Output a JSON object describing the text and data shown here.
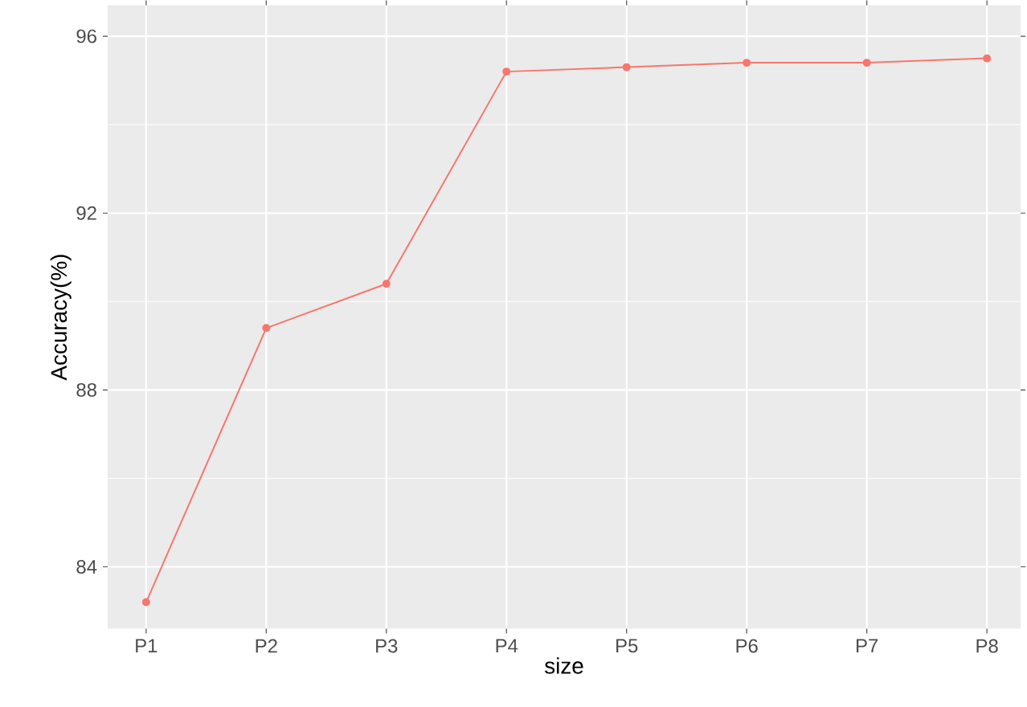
{
  "chart_data": {
    "type": "line",
    "xlabel": "size",
    "ylabel": "Accuracy(%)",
    "categories": [
      "P1",
      "P2",
      "P3",
      "P4",
      "P5",
      "P6",
      "P7",
      "P8"
    ],
    "values": [
      83.2,
      89.4,
      90.4,
      95.2,
      95.3,
      95.4,
      95.4,
      95.5
    ],
    "color": "#f8766d",
    "marker": "circle",
    "grid": true,
    "ylim": [
      82.6,
      96.7
    ],
    "yticks": [
      84,
      88,
      92,
      96
    ]
  }
}
